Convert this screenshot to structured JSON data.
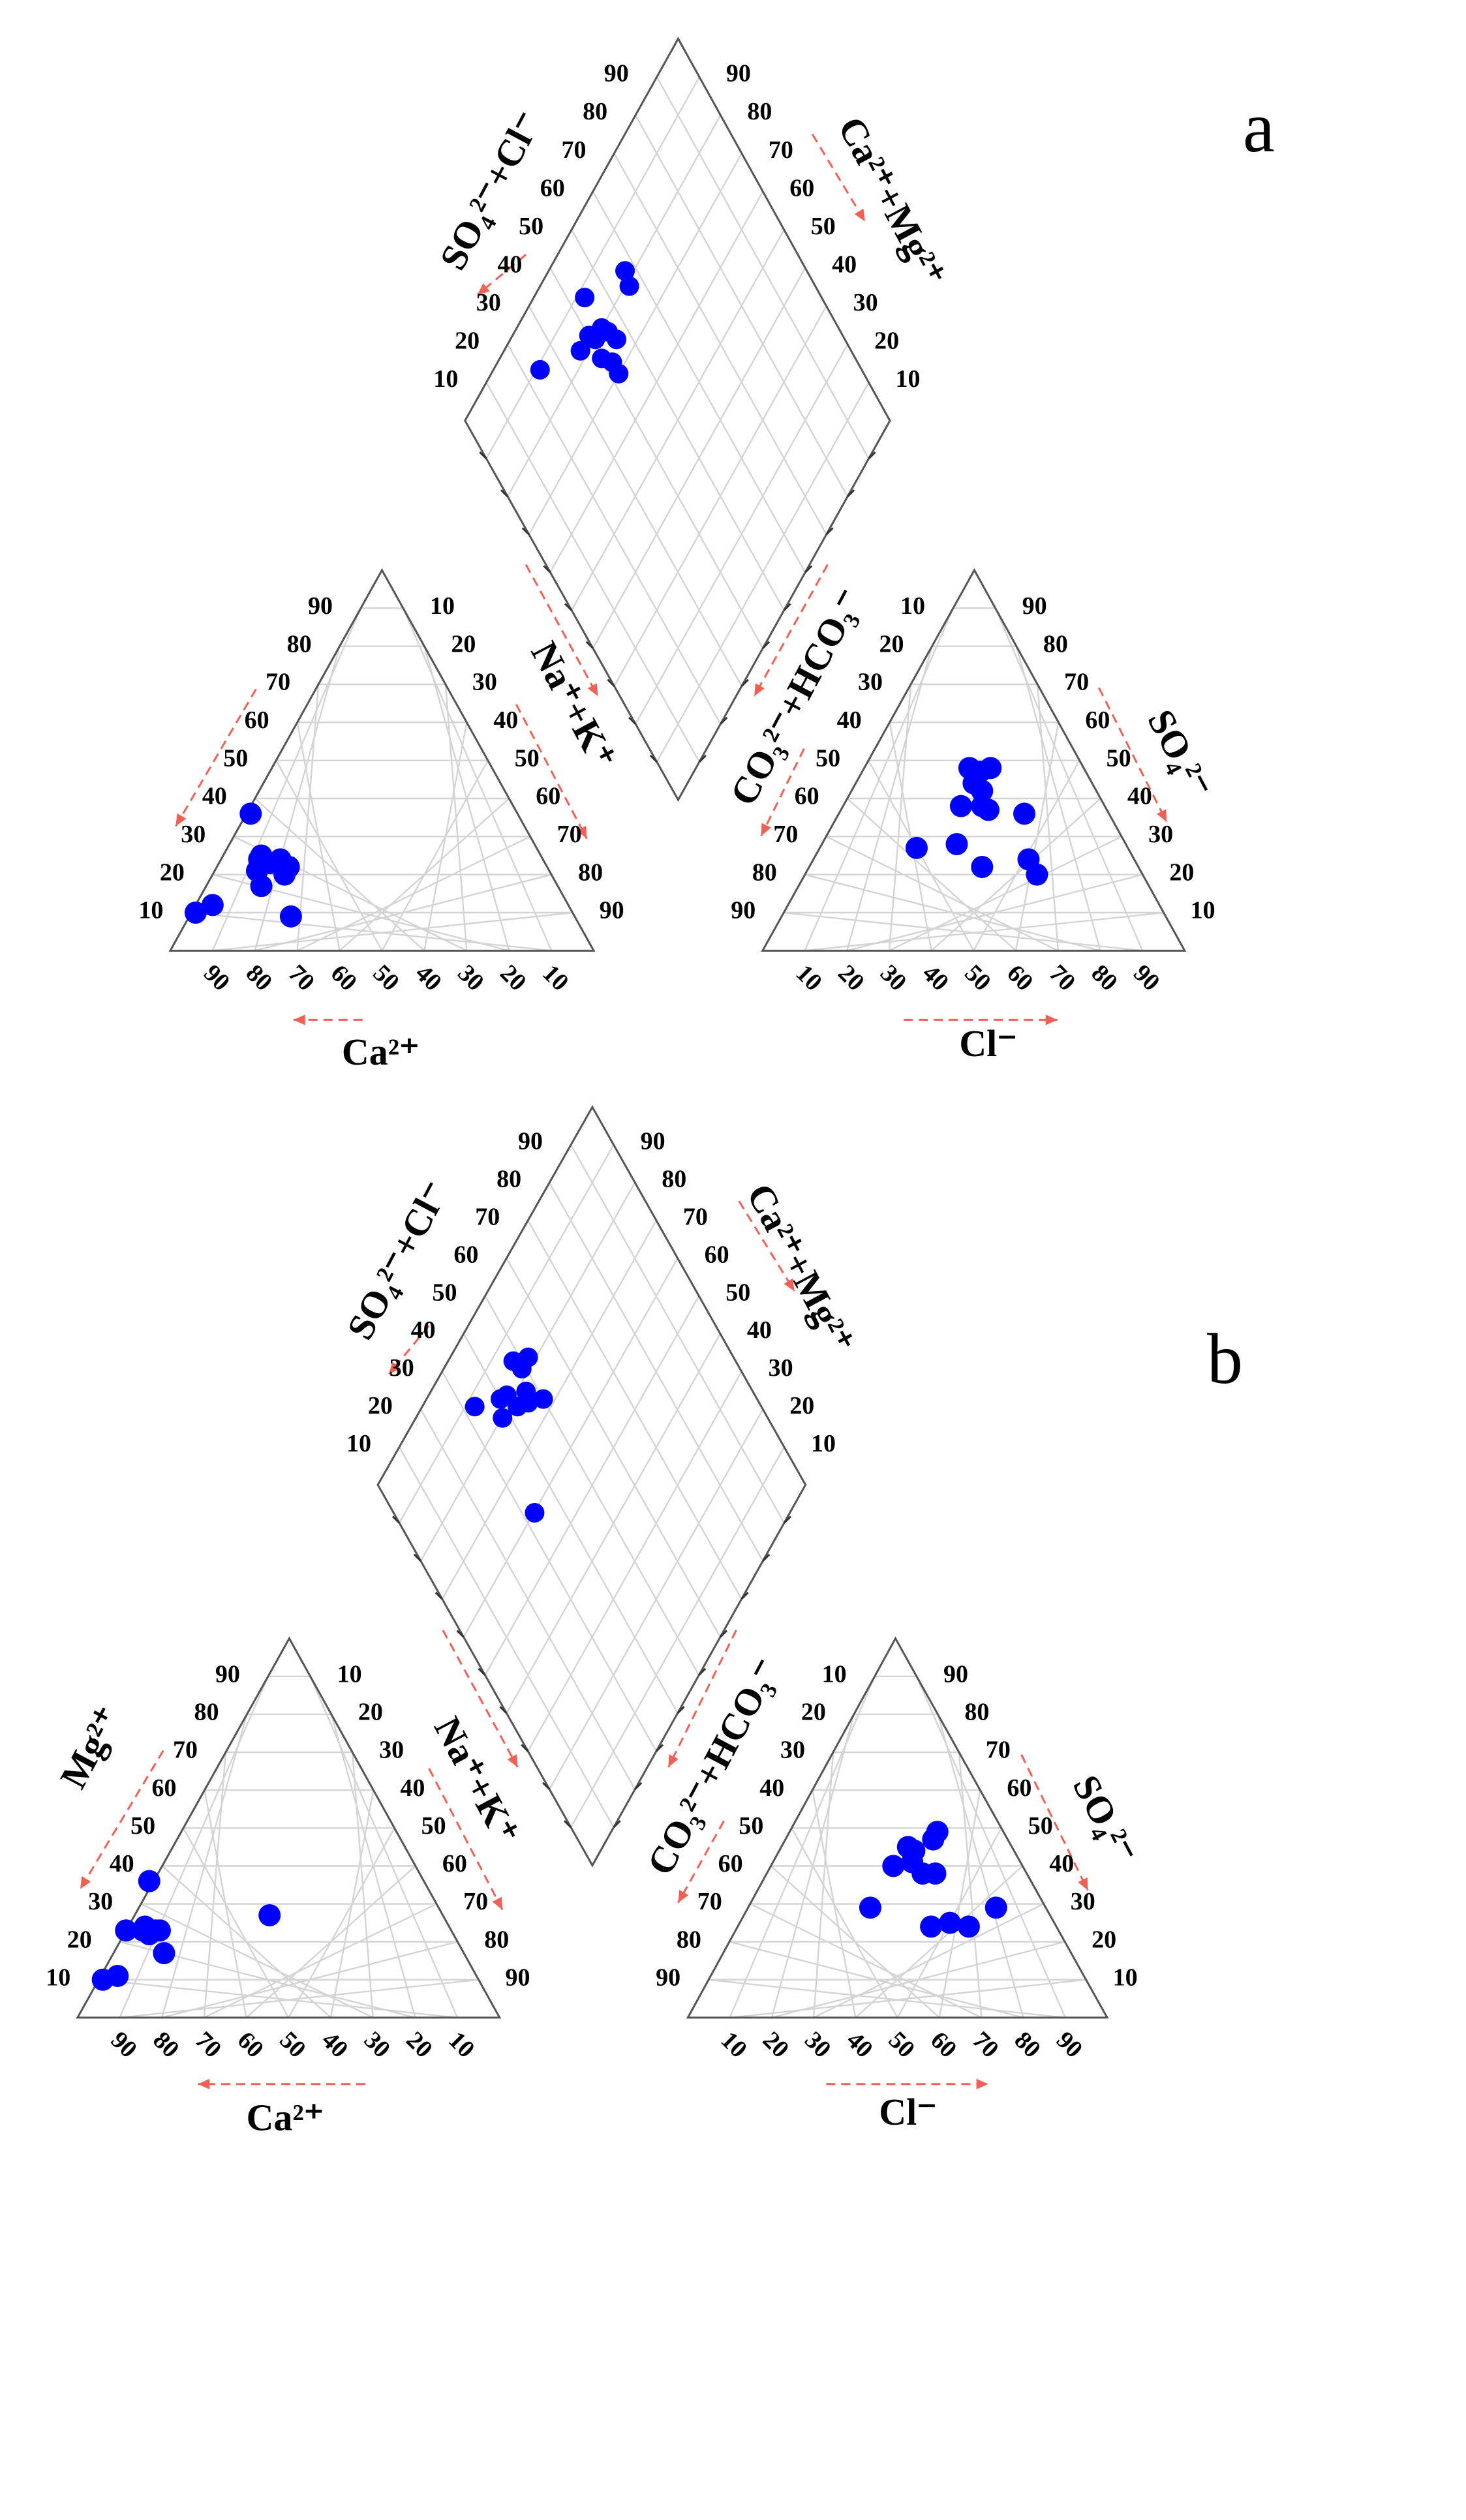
{
  "colors": {
    "points": "#0000ff",
    "grid": "#d4d4d4",
    "frame": "#555555",
    "guides": "#f06055"
  },
  "tick_labels": [
    "10",
    "20",
    "30",
    "40",
    "50",
    "60",
    "70",
    "80",
    "90"
  ],
  "axis_titles": {
    "ca": "Ca²⁺",
    "mg": "Mg²⁺",
    "nak": "Na⁺+K⁺",
    "cl": "Cl⁻",
    "so4": "SO₄²⁻",
    "co3hco3": "CO₃²⁻+HCO₃⁻",
    "so4cl": "SO₄²⁻+Cl⁻",
    "camg": "Ca²⁺+Mg²⁺"
  },
  "chart_data": [
    {
      "type": "scatter",
      "panel": "a",
      "title": "a",
      "cation_triangle": {
        "axes": [
          "Ca²⁺",
          "Mg²⁺",
          "Na⁺+K⁺"
        ],
        "units": "%",
        "points": [
          {
            "ca": 89,
            "mg": 10
          },
          {
            "ca": 84,
            "mg": 12
          },
          {
            "ca": 67,
            "mg": 9
          },
          {
            "ca": 70,
            "mg": 17
          },
          {
            "ca": 69,
            "mg": 21
          },
          {
            "ca": 68,
            "mg": 22
          },
          {
            "ca": 67,
            "mg": 24
          },
          {
            "ca": 66,
            "mg": 25
          },
          {
            "ca": 65,
            "mg": 23
          },
          {
            "ca": 62,
            "mg": 24
          },
          {
            "ca": 61,
            "mg": 22
          },
          {
            "ca": 63,
            "mg": 20
          },
          {
            "ca": 63,
            "mg": 36
          }
        ]
      },
      "anion_triangle": {
        "axes": [
          "Cl⁻",
          "SO₄²⁻",
          "CO₃²⁻+HCO₃⁻"
        ],
        "units": "%",
        "points": [
          {
            "cl": 23,
            "so4": 27
          },
          {
            "cl": 32,
            "so4": 28
          },
          {
            "cl": 41,
            "so4": 22
          },
          {
            "cl": 51,
            "so4": 24
          },
          {
            "cl": 55,
            "so4": 20
          },
          {
            "cl": 44,
            "so4": 36
          },
          {
            "cl": 28,
            "so4": 38
          },
          {
            "cl": 33,
            "so4": 38
          },
          {
            "cl": 35,
            "so4": 37
          },
          {
            "cl": 28,
            "so4": 44
          },
          {
            "cl": 25,
            "so4": 48
          },
          {
            "cl": 28,
            "so4": 47
          },
          {
            "cl": 30,
            "so4": 48
          },
          {
            "cl": 31,
            "so4": 42
          }
        ]
      },
      "diamond": {
        "axes": [
          "SO₄²⁻+Cl⁻",
          "Ca²⁺+Mg²⁺"
        ],
        "units": "%",
        "points": [
          {
            "so4cl": 57,
            "camg": 82
          },
          {
            "so4cl": 56,
            "camg": 79
          },
          {
            "so4cl": 44,
            "camg": 88
          },
          {
            "so4cl": 44,
            "camg": 80
          },
          {
            "so4cl": 45,
            "camg": 78
          },
          {
            "so4cl": 46,
            "camg": 75
          },
          {
            "so4cl": 41,
            "camg": 80
          },
          {
            "so4cl": 40,
            "camg": 82
          },
          {
            "so4cl": 40,
            "camg": 76
          },
          {
            "so4cl": 42,
            "camg": 73
          },
          {
            "so4cl": 42,
            "camg": 70
          },
          {
            "so4cl": 36,
            "camg": 82
          },
          {
            "so4cl": 24,
            "camg": 89
          }
        ]
      }
    },
    {
      "type": "scatter",
      "panel": "b",
      "title": "b",
      "cation_triangle": {
        "axes": [
          "Ca²⁺",
          "Mg²⁺",
          "Na⁺+K⁺"
        ],
        "units": "%",
        "points": [
          {
            "ca": 89,
            "mg": 10
          },
          {
            "ca": 85,
            "mg": 11
          },
          {
            "ca": 77,
            "mg": 23
          },
          {
            "ca": 73,
            "mg": 23
          },
          {
            "ca": 72,
            "mg": 22
          },
          {
            "ca": 72,
            "mg": 24
          },
          {
            "ca": 70,
            "mg": 23
          },
          {
            "ca": 69,
            "mg": 23
          },
          {
            "ca": 71,
            "mg": 17
          },
          {
            "ca": 65,
            "mg": 36
          },
          {
            "ca": 41,
            "mg": 27
          }
        ]
      },
      "anion_triangle": {
        "axes": [
          "Cl⁻",
          "SO₄²⁻",
          "CO₃²⁻+HCO₃⁻"
        ],
        "units": "%",
        "points": [
          {
            "cl": 29,
            "so4": 40
          },
          {
            "cl": 30,
            "so4": 45
          },
          {
            "cl": 32,
            "so4": 44
          },
          {
            "cl": 33,
            "so4": 41
          },
          {
            "cl": 35,
            "so4": 47
          },
          {
            "cl": 35,
            "so4": 49
          },
          {
            "cl": 37,
            "so4": 38
          },
          {
            "cl": 40,
            "so4": 38
          },
          {
            "cl": 46,
            "so4": 24
          },
          {
            "cl": 50,
            "so4": 25
          },
          {
            "cl": 55,
            "so4": 24
          },
          {
            "cl": 59,
            "so4": 29
          },
          {
            "cl": 29,
            "so4": 29
          }
        ]
      },
      "diamond": {
        "axes": [
          "SO₄²⁻+Cl⁻",
          "Ca²⁺+Mg²⁺"
        ],
        "units": "%",
        "points": [
          {
            "so4cl": 52,
            "camg": 82
          },
          {
            "so4cl": 50,
            "camg": 73
          },
          {
            "so4cl": 49,
            "camg": 82
          },
          {
            "so4cl": 48,
            "camg": 85
          },
          {
            "so4cl": 47,
            "camg": 78
          },
          {
            "so4cl": 46,
            "camg": 76
          },
          {
            "so4cl": 43,
            "camg": 78
          },
          {
            "so4cl": 42,
            "camg": 82
          },
          {
            "so4cl": 40,
            "camg": 83
          },
          {
            "so4cl": 38,
            "camg": 80
          },
          {
            "so4cl": 33,
            "camg": 88
          },
          {
            "so4cl": 33,
            "camg": 60
          }
        ]
      }
    }
  ]
}
